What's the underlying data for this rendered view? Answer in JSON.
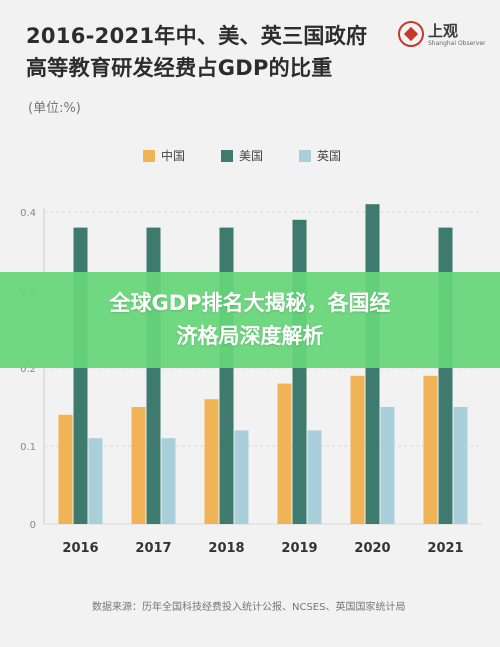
{
  "title": {
    "line1": "2016-2021年中、美、英三国政府",
    "line2": "高等教育研发经费占GDP的比重"
  },
  "logo": {
    "name": "上观",
    "sub": "Shanghai Observer"
  },
  "unit_label": "(单位:%)",
  "banner": {
    "line1": "全球GDP排名大揭秘，各国经",
    "line2": "济格局深度解析"
  },
  "source": "数据来源：历年全国科技经费投入统计公报、NCSES、英国国家统计局",
  "chart_data": {
    "type": "bar",
    "title": "2016-2021年中、美、英三国政府高等教育研发经费占GDP的比重",
    "ylabel": "(单位:%)",
    "categories": [
      "2016",
      "2017",
      "2018",
      "2019",
      "2020",
      "2021"
    ],
    "ylim": [
      0,
      0.4
    ],
    "yticks": [
      0,
      0.1,
      0.2,
      0.3,
      0.4
    ],
    "ytick_labels": [
      "0",
      "0.1",
      "0.2",
      "0.3",
      "0.4"
    ],
    "grid": true,
    "legend_position": "top",
    "series": [
      {
        "name": "中国",
        "color": "#f0b356",
        "values": [
          0.14,
          0.15,
          0.16,
          0.18,
          0.19,
          0.19
        ]
      },
      {
        "name": "美国",
        "color": "#3e7a6e",
        "values": [
          0.38,
          0.38,
          0.38,
          0.39,
          0.41,
          0.38
        ]
      },
      {
        "name": "英国",
        "color": "#a9d0da",
        "values": [
          0.11,
          0.11,
          0.12,
          0.12,
          0.15,
          0.15
        ]
      }
    ]
  }
}
